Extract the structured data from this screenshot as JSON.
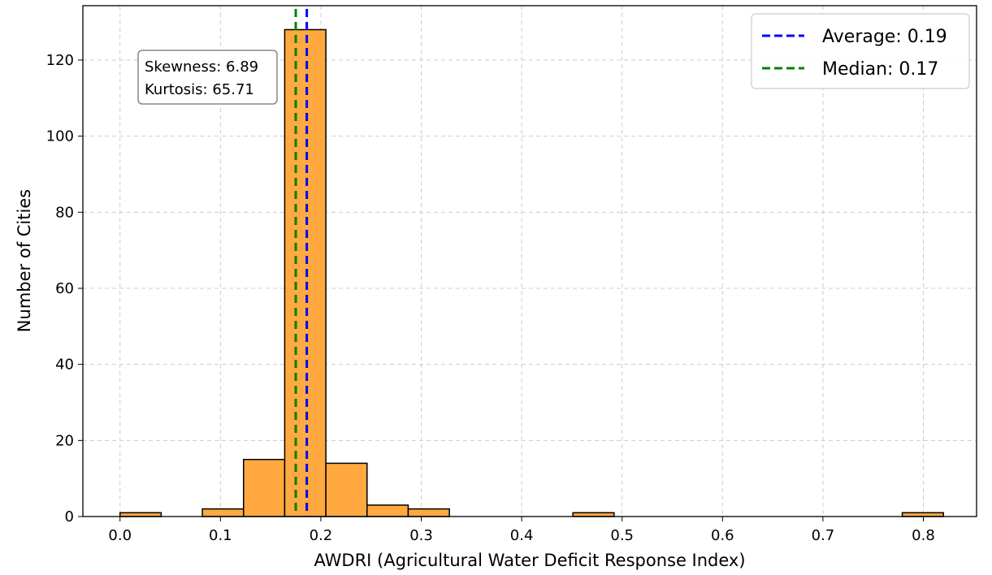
{
  "chart_data": {
    "type": "bar",
    "subtype": "histogram",
    "title": "",
    "xlabel": "AWDRI (Agricultural Water Deficit Response Index)",
    "ylabel": "Number of Cities",
    "xlim": [
      -0.037,
      0.853
    ],
    "ylim": [
      0,
      134.3
    ],
    "grid": true,
    "xticks": [
      0.0,
      0.1,
      0.2,
      0.3,
      0.4,
      0.5,
      0.6,
      0.7,
      0.8
    ],
    "xtick_labels": [
      "0.0",
      "0.1",
      "0.2",
      "0.3",
      "0.4",
      "0.5",
      "0.6",
      "0.7",
      "0.8"
    ],
    "yticks": [
      0,
      20,
      40,
      60,
      80,
      100,
      120
    ],
    "ytick_labels": [
      "0",
      "20",
      "40",
      "60",
      "80",
      "100",
      "120"
    ],
    "bin_start": 0.0,
    "bin_width": 0.041,
    "counts": [
      1,
      0,
      2,
      15,
      128,
      14,
      3,
      2,
      0,
      0,
      0,
      1,
      0,
      0,
      0,
      0,
      0,
      0,
      0,
      1
    ],
    "bar_color": "#FFA940",
    "bar_edge_color": "#000000",
    "lines": [
      {
        "name": "Average: 0.19",
        "x": 0.186,
        "color": "#0000FF",
        "style": "dashed"
      },
      {
        "name": "Median: 0.17",
        "x": 0.175,
        "color": "#008000",
        "style": "dashed"
      }
    ],
    "legend_placement": "top-right",
    "annotation": {
      "lines": [
        "Skewness: 6.89",
        "Kurtosis: 65.71"
      ],
      "placement": "top-left"
    }
  }
}
